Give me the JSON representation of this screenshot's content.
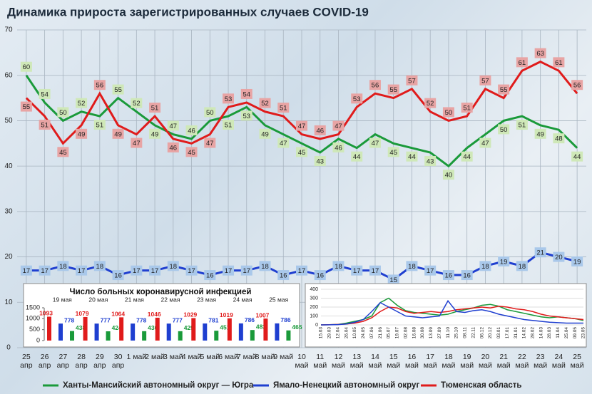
{
  "chart_data": [
    {
      "type": "line",
      "title": "Динамика прироста зарегистрированных случаев COVID-19",
      "categories": [
        "25 апр",
        "26 апр",
        "27 апр",
        "28 апр",
        "29 апр",
        "30 апр",
        "1 май",
        "2 май",
        "3 май",
        "4 май",
        "5 май",
        "6 май",
        "7 май",
        "8 май",
        "9 май",
        "10 май",
        "11 май",
        "12 май",
        "13 май",
        "14 май",
        "15 май",
        "16 май",
        "17 май",
        "18 май",
        "19 май",
        "20 май",
        "21 май",
        "22 май",
        "23 май",
        "24 май",
        "25 май"
      ],
      "series": [
        {
          "name": "Ханты-Мансийский автономный округ — Югра",
          "color": "#1a9a3a",
          "label_color": "#cfe8b8",
          "values": [
            60,
            54,
            50,
            52,
            51,
            55,
            52,
            49,
            47,
            46,
            50,
            51,
            53,
            49,
            47,
            45,
            43,
            46,
            44,
            47,
            45,
            44,
            43,
            40,
            44,
            47,
            50,
            51,
            49,
            48,
            44
          ]
        },
        {
          "name": "Ямало-Ненецкий автономный округ",
          "color": "#1f3fd0",
          "label_color": "#a9c8ea",
          "values": [
            17,
            17,
            18,
            17,
            18,
            16,
            17,
            17,
            18,
            17,
            16,
            17,
            17,
            18,
            16,
            17,
            16,
            18,
            17,
            17,
            15,
            18,
            17,
            16,
            16,
            18,
            19,
            18,
            21,
            20,
            19
          ]
        },
        {
          "name": "Тюменская область",
          "color": "#e01b1b",
          "label_color": "#e8a4a4",
          "values": [
            55,
            51,
            45,
            49,
            56,
            49,
            47,
            51,
            46,
            45,
            47,
            53,
            54,
            52,
            51,
            47,
            46,
            47,
            53,
            56,
            55,
            57,
            52,
            50,
            51,
            57,
            55,
            61,
            63,
            61,
            56
          ]
        }
      ],
      "ylim": [
        0,
        70
      ],
      "yticks": [
        0,
        10,
        20,
        30,
        40,
        50,
        60,
        70
      ],
      "grid": true
    },
    {
      "type": "bar",
      "title": "Число больных коронавирусной инфекцией",
      "categories": [
        "19 мая",
        "20 мая",
        "21 мая",
        "22 мая",
        "23 мая",
        "24 мая",
        "25 мая"
      ],
      "series": [
        {
          "color": "#e01b1b",
          "values": [
            1093,
            1079,
            1064,
            1046,
            1029,
            1019,
            1007
          ]
        },
        {
          "color": "#1f3fd0",
          "values": [
            778,
            777,
            778,
            777,
            781,
            786,
            786
          ]
        },
        {
          "color": "#1a9a3a",
          "values": [
            438,
            424,
            430,
            429,
            451,
            483,
            465
          ]
        }
      ],
      "ylim": [
        0,
        1500
      ],
      "yticks": [
        0,
        500,
        1000,
        1500
      ]
    },
    {
      "type": "line",
      "categories": [
        "15.03",
        "29.03",
        "12.04",
        "26.04",
        "10.05",
        "24.05",
        "07.06",
        "21.06",
        "05.07",
        "19.07",
        "02.08",
        "16.08",
        "30.08",
        "13.09",
        "27.09",
        "11.10",
        "25.10",
        "08.11",
        "22.11",
        "06.12",
        "20.12",
        "03.01",
        "17.01",
        "31.01",
        "14.02",
        "28.02",
        "14.03",
        "28.03",
        "11.04",
        "25.04",
        "09.05",
        "23.05"
      ],
      "series": [
        {
          "color": "#1a9a3a",
          "values": [
            0,
            2,
            5,
            20,
            40,
            60,
            100,
            250,
            300,
            220,
            160,
            140,
            130,
            120,
            110,
            120,
            150,
            170,
            190,
            220,
            230,
            210,
            170,
            150,
            130,
            110,
            90,
            80,
            90,
            80,
            70,
            50
          ]
        },
        {
          "color": "#e01b1b",
          "values": [
            0,
            2,
            5,
            10,
            20,
            40,
            80,
            150,
            200,
            190,
            150,
            130,
            140,
            150,
            140,
            150,
            170,
            180,
            190,
            200,
            190,
            210,
            200,
            180,
            170,
            150,
            120,
            100,
            90,
            80,
            70,
            60
          ]
        },
        {
          "color": "#1f3fd0",
          "values": [
            0,
            1,
            3,
            10,
            30,
            60,
            150,
            250,
            200,
            150,
            100,
            90,
            80,
            90,
            100,
            270,
            150,
            140,
            160,
            170,
            150,
            120,
            100,
            80,
            60,
            50,
            40,
            30,
            25,
            20,
            20,
            20
          ]
        }
      ],
      "ylim": [
        0,
        400
      ],
      "yticks": [
        0,
        100,
        200,
        300,
        400
      ]
    }
  ]
}
